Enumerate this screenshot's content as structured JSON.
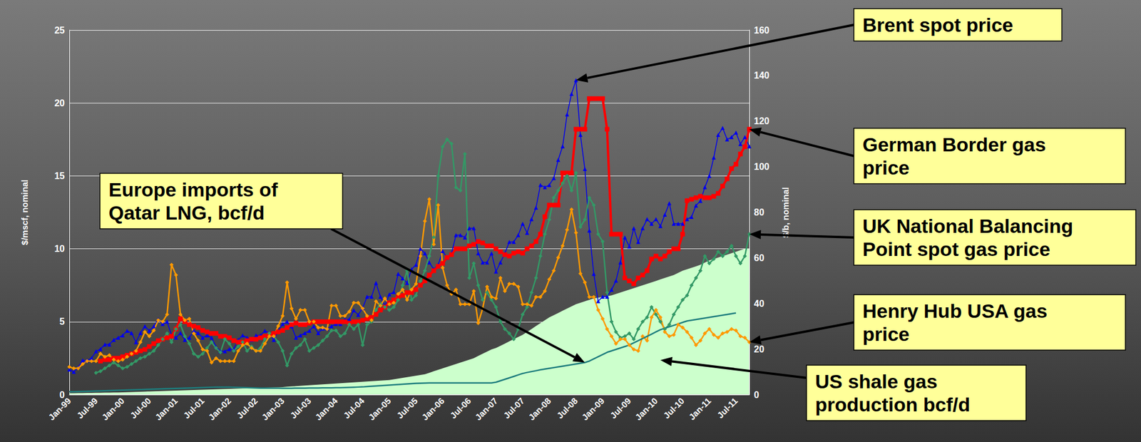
{
  "chart_data": {
    "type": "line",
    "categories": [
      "Jan-99",
      null,
      null,
      null,
      null,
      null,
      "Jul-99",
      null,
      null,
      null,
      null,
      null,
      "Jan-00",
      null,
      null,
      null,
      null,
      null,
      "Jul-00",
      null,
      null,
      null,
      null,
      null,
      "Jan-01",
      null,
      null,
      null,
      null,
      null,
      "Jul-01",
      null,
      null,
      null,
      null,
      null,
      "Jan-02",
      null,
      null,
      null,
      null,
      null,
      "Jul-02",
      null,
      null,
      null,
      null,
      null,
      "Jan-03",
      null,
      null,
      null,
      null,
      null,
      "Jul-03",
      null,
      null,
      null,
      null,
      null,
      "Jan-04",
      null,
      null,
      null,
      null,
      null,
      "Jul-04",
      null,
      null,
      null,
      null,
      null,
      "Jan-05",
      null,
      null,
      null,
      null,
      null,
      "Jul-05",
      null,
      null,
      null,
      null,
      null,
      "Jan-06",
      null,
      null,
      null,
      null,
      null,
      "Jul-06",
      null,
      null,
      null,
      null,
      null,
      "Jan-07",
      null,
      null,
      null,
      null,
      null,
      "Jul-07",
      null,
      null,
      null,
      null,
      null,
      "Jan-08",
      null,
      null,
      null,
      null,
      null,
      "Jul-08",
      null,
      null,
      null,
      null,
      null,
      "Jan-09",
      null,
      null,
      null,
      null,
      null,
      "Jul-09",
      null,
      null,
      null,
      null,
      null,
      "Jan-10",
      null,
      null,
      null,
      null,
      null,
      "Jul-10",
      null,
      null,
      null,
      null,
      null,
      "Jan-11",
      null,
      null,
      null,
      null,
      null,
      "Jul-11",
      null,
      null,
      null
    ],
    "ylabel": "$/mscf, nominal",
    "y2label": "$/b, nominal",
    "ylim": [
      0,
      25
    ],
    "yticks": [
      0,
      5,
      10,
      15,
      20,
      25
    ],
    "y2lim": [
      0,
      160
    ],
    "y2ticks": [
      0,
      20,
      40,
      60,
      80,
      100,
      120,
      140,
      160
    ],
    "grid": true,
    "series": [
      {
        "name": "Brent spot price",
        "type": "line",
        "color": "#0000ee",
        "marker": "triangle",
        "axis": "y2",
        "values": [
          11,
          10,
          12,
          15,
          15,
          16,
          19,
          20,
          22,
          22,
          24,
          25,
          26,
          28,
          27,
          23,
          27,
          30,
          28,
          30,
          33,
          31,
          32,
          26,
          25,
          27,
          24,
          25,
          28,
          27,
          25,
          26,
          25,
          21,
          19,
          19,
          20,
          20,
          24,
          26,
          25,
          24,
          26,
          26,
          28,
          27,
          24,
          28,
          31,
          32,
          30,
          25,
          26,
          27,
          28,
          30,
          27,
          29,
          29,
          30,
          31,
          31,
          33,
          33,
          37,
          35,
          38,
          43,
          43,
          49,
          43,
          39,
          44,
          45,
          53,
          51,
          49,
          55,
          57,
          64,
          62,
          58,
          55,
          57,
          63,
          60,
          62,
          70,
          70,
          69,
          73,
          73,
          62,
          58,
          58,
          62,
          54,
          58,
          62,
          67,
          67,
          70,
          75,
          71,
          77,
          82,
          92,
          91,
          92,
          95,
          103,
          109,
          123,
          132,
          138,
          114,
          99,
          72,
          53,
          41,
          43,
          43,
          46,
          50,
          58,
          69,
          65,
          73,
          67,
          73,
          77,
          75,
          77,
          74,
          79,
          84,
          75,
          75,
          75,
          77,
          78,
          83,
          85,
          91,
          96,
          104,
          114,
          117,
          112,
          113,
          115,
          110,
          113,
          109
        ]
      },
      {
        "name": "German Border gas price",
        "type": "line",
        "color": "#ff0000",
        "marker": "square",
        "values": [
          null,
          null,
          null,
          null,
          null,
          null,
          null,
          2.3,
          2.4,
          2.4,
          2.5,
          2.5,
          2.6,
          2.7,
          2.8,
          2.9,
          3.0,
          3.1,
          3.3,
          3.5,
          3.7,
          3.8,
          3.9,
          4.0,
          4.5,
          5.2,
          5.0,
          4.8,
          4.7,
          4.6,
          4.4,
          4.3,
          4.2,
          4.2,
          4.0,
          4.0,
          3.9,
          3.7,
          3.6,
          3.6,
          3.7,
          3.8,
          3.8,
          3.9,
          4.0,
          4.1,
          4.2,
          4.3,
          4.4,
          4.6,
          4.8,
          4.9,
          4.8,
          4.8,
          4.9,
          5.0,
          5.0,
          5.0,
          5.0,
          5.0,
          5.0,
          5.0,
          5.0,
          4.9,
          5.0,
          5.0,
          5.1,
          5.2,
          5.3,
          5.5,
          5.8,
          6.0,
          6.3,
          6.5,
          6.7,
          6.8,
          7.0,
          7.0,
          7.2,
          7.5,
          7.8,
          8.2,
          8.5,
          8.8,
          9.0,
          9.4,
          9.6,
          10.0,
          10.0,
          10.0,
          10.2,
          10.3,
          10.5,
          10.4,
          10.2,
          10.2,
          10.0,
          9.8,
          9.6,
          9.5,
          9.7,
          9.8,
          9.7,
          10.0,
          10.2,
          10.5,
          11.0,
          12.2,
          13.0,
          13.0,
          13.0,
          15.2,
          15.2,
          15.2,
          18.2,
          18.2,
          18.2,
          20.3,
          20.3,
          20.3,
          20.3,
          18.2,
          11.0,
          11.0,
          11.0,
          8.0,
          7.8,
          7.6,
          8.0,
          8.2,
          8.5,
          9.3,
          9.5,
          9.3,
          9.5,
          9.8,
          10.0,
          10.0,
          11.0,
          13.3,
          13.4,
          13.5,
          13.6,
          13.5,
          13.5,
          13.6,
          13.8,
          14.3,
          14.8,
          15.5,
          15.8,
          16.5,
          17.0,
          18.2
        ]
      },
      {
        "name": "UK National Balancing Point spot gas price",
        "type": "line",
        "color": "#339966",
        "marker": "diamond",
        "values": [
          null,
          null,
          null,
          null,
          null,
          null,
          1.5,
          1.6,
          1.8,
          2.0,
          2.2,
          2.0,
          1.8,
          1.9,
          2.1,
          2.3,
          2.5,
          2.6,
          2.8,
          3.0,
          3.4,
          3.8,
          4.2,
          3.6,
          4.5,
          4.8,
          4.0,
          3.5,
          2.8,
          2.6,
          2.8,
          3.2,
          3.6,
          3.2,
          2.9,
          3.8,
          3.5,
          3.0,
          3.3,
          3.6,
          3.0,
          3.3,
          3.0,
          3.2,
          3.8,
          4.2,
          4.0,
          3.6,
          3.0,
          2.0,
          2.8,
          3.2,
          3.4,
          3.8,
          3.0,
          3.2,
          3.4,
          3.7,
          4.0,
          4.4,
          4.4,
          4.0,
          4.2,
          4.8,
          4.5,
          4.8,
          3.4,
          4.8,
          5.0,
          5.8,
          6.2,
          6.0,
          5.8,
          6.0,
          6.5,
          7.5,
          8.5,
          6.5,
          6.8,
          7.8,
          8.5,
          9.5,
          10.8,
          15.0,
          17.0,
          17.5,
          17.2,
          14.2,
          14.0,
          16.5,
          8.0,
          9.0,
          7.5,
          6.5,
          7.0,
          6.5,
          6.0,
          5.0,
          4.5,
          4.2,
          3.8,
          4.5,
          5.5,
          6.0,
          7.0,
          8.0,
          9.5,
          11.0,
          12.0,
          13.5,
          14.0,
          14.5,
          15.0,
          14.0,
          15.2,
          11.5,
          12.0,
          13.5,
          13.0,
          11.0,
          10.5,
          7.0,
          5.0,
          4.3,
          3.9,
          4.0,
          4.2,
          3.8,
          4.5,
          5.0,
          5.3,
          6.0,
          5.5,
          5.0,
          4.5,
          4.8,
          5.5,
          6.0,
          6.5,
          6.8,
          7.5,
          8.0,
          8.5,
          9.5,
          9.0,
          9.3,
          9.8,
          9.5,
          9.8,
          10.2,
          9.5,
          9.0,
          9.5,
          11.0
        ]
      },
      {
        "name": "Henry Hub USA gas price",
        "type": "line",
        "color": "#ff9900",
        "marker": "diamond",
        "values": [
          1.9,
          1.8,
          1.8,
          2.1,
          2.3,
          2.3,
          2.3,
          2.8,
          2.6,
          2.7,
          2.4,
          2.3,
          2.4,
          2.6,
          2.8,
          3.0,
          3.6,
          4.3,
          4.0,
          4.4,
          5.1,
          5.0,
          5.5,
          8.9,
          8.2,
          5.5,
          5.1,
          5.2,
          4.2,
          3.7,
          3.1,
          3.0,
          2.2,
          2.5,
          2.3,
          2.3,
          2.3,
          2.3,
          3.0,
          3.4,
          3.5,
          3.2,
          3.0,
          3.0,
          3.5,
          4.0,
          4.0,
          4.7,
          5.4,
          7.7,
          5.9,
          5.2,
          5.8,
          5.8,
          5.0,
          5.0,
          4.6,
          4.6,
          4.5,
          6.1,
          6.1,
          5.4,
          5.4,
          5.7,
          6.3,
          6.3,
          5.9,
          5.4,
          5.1,
          6.4,
          6.1,
          6.6,
          6.2,
          6.3,
          6.9,
          7.2,
          6.5,
          7.2,
          7.6,
          9.5,
          11.9,
          13.4,
          10.3,
          13.0,
          8.7,
          7.5,
          6.9,
          7.2,
          6.2,
          6.2,
          6.2,
          7.1,
          4.9,
          5.9,
          7.4,
          6.7,
          6.6,
          8.0,
          7.1,
          7.6,
          7.6,
          7.4,
          6.2,
          6.2,
          6.1,
          6.7,
          6.7,
          7.1,
          7.9,
          8.5,
          9.4,
          10.2,
          11.3,
          12.7,
          11.1,
          8.3,
          7.7,
          6.7,
          6.7,
          5.8,
          5.2,
          4.5,
          4.0,
          3.5,
          3.8,
          3.8,
          3.4,
          3.1,
          3.0,
          4.0,
          3.7,
          5.3,
          5.8,
          5.3,
          4.3,
          4.0,
          4.1,
          4.8,
          4.6,
          4.3,
          3.9,
          3.4,
          3.7,
          4.2,
          4.5,
          4.1,
          3.9,
          4.2,
          4.3,
          4.5,
          4.4,
          4.0,
          3.9,
          3.6
        ]
      },
      {
        "name": "US shale gas production bcf/d",
        "type": "area",
        "color": "#ccffcc",
        "marker": "none",
        "values": [
          0.1,
          0.1,
          0.11,
          0.11,
          0.12,
          0.12,
          0.13,
          0.13,
          0.14,
          0.14,
          0.15,
          0.15,
          0.16,
          0.17,
          0.18,
          0.19,
          0.2,
          0.21,
          0.22,
          0.23,
          0.24,
          0.25,
          0.26,
          0.27,
          0.28,
          0.29,
          0.3,
          0.31,
          0.32,
          0.33,
          0.34,
          0.35,
          0.36,
          0.37,
          0.38,
          0.39,
          0.4,
          0.41,
          0.42,
          0.43,
          0.44,
          0.45,
          0.46,
          0.47,
          0.48,
          0.49,
          0.5,
          0.51,
          0.52,
          0.54,
          0.56,
          0.58,
          0.6,
          0.62,
          0.64,
          0.66,
          0.68,
          0.7,
          0.72,
          0.74,
          0.76,
          0.78,
          0.8,
          0.82,
          0.84,
          0.86,
          0.88,
          0.9,
          0.92,
          0.94,
          0.96,
          0.98,
          1.0,
          1.05,
          1.1,
          1.15,
          1.2,
          1.25,
          1.3,
          1.35,
          1.4,
          1.5,
          1.6,
          1.7,
          1.8,
          1.9,
          2.0,
          2.1,
          2.2,
          2.3,
          2.4,
          2.5,
          2.65,
          2.8,
          2.95,
          3.1,
          3.2,
          3.35,
          3.5,
          3.65,
          3.8,
          3.95,
          4.1,
          4.3,
          4.5,
          4.7,
          4.9,
          5.1,
          5.3,
          5.45,
          5.6,
          5.75,
          5.9,
          6.05,
          6.2,
          6.3,
          6.4,
          6.5,
          6.6,
          6.65,
          6.7,
          6.75,
          6.8,
          6.9,
          7.0,
          7.1,
          7.2,
          7.3,
          7.4,
          7.5,
          7.6,
          7.7,
          7.8,
          7.9,
          8.0,
          8.1,
          8.2,
          8.35,
          8.5,
          8.6,
          8.7,
          8.8,
          8.9,
          9.05,
          9.2,
          9.3,
          9.4,
          9.5,
          9.6,
          9.7,
          9.8,
          9.9,
          10.0,
          10.0
        ]
      },
      {
        "name": "Europe imports of Qatar LNG, bcf/d",
        "type": "line",
        "color": "#1d7d7d",
        "marker": "none",
        "values": [
          0.2,
          0.2,
          0.21,
          0.22,
          0.23,
          0.24,
          0.25,
          0.26,
          0.27,
          0.28,
          0.29,
          0.3,
          0.31,
          0.32,
          0.33,
          0.34,
          0.35,
          0.36,
          0.37,
          0.38,
          0.39,
          0.4,
          0.41,
          0.42,
          0.43,
          0.44,
          0.45,
          0.46,
          0.47,
          0.48,
          0.49,
          0.5,
          0.51,
          0.52,
          0.52,
          0.52,
          0.52,
          0.51,
          0.5,
          0.49,
          0.48,
          0.47,
          0.46,
          0.45,
          0.45,
          0.45,
          0.45,
          0.45,
          0.44,
          0.44,
          0.44,
          0.45,
          0.45,
          0.45,
          0.46,
          0.46,
          0.46,
          0.47,
          0.47,
          0.47,
          0.48,
          0.48,
          0.49,
          0.5,
          0.51,
          0.52,
          0.53,
          0.55,
          0.57,
          0.59,
          0.61,
          0.63,
          0.65,
          0.67,
          0.69,
          0.71,
          0.73,
          0.75,
          0.77,
          0.78,
          0.79,
          0.8,
          0.8,
          0.8,
          0.8,
          0.8,
          0.8,
          0.8,
          0.8,
          0.8,
          0.8,
          0.8,
          0.8,
          0.8,
          0.8,
          0.8,
          0.85,
          0.95,
          1.05,
          1.15,
          1.25,
          1.35,
          1.45,
          1.52,
          1.58,
          1.64,
          1.7,
          1.75,
          1.8,
          1.85,
          1.9,
          1.95,
          2.0,
          2.05,
          2.1,
          2.15,
          2.2,
          2.3,
          2.45,
          2.6,
          2.75,
          2.9,
          3.0,
          3.1,
          3.2,
          3.3,
          3.4,
          3.55,
          3.7,
          3.85,
          4.0,
          4.15,
          4.3,
          4.45,
          4.55,
          4.65,
          4.75,
          4.85,
          4.95,
          5.05,
          5.1,
          5.15,
          5.2,
          5.25,
          5.3,
          5.35,
          5.4,
          5.45,
          5.5,
          5.55,
          5.6,
          null,
          null,
          null
        ]
      }
    ]
  }
}
